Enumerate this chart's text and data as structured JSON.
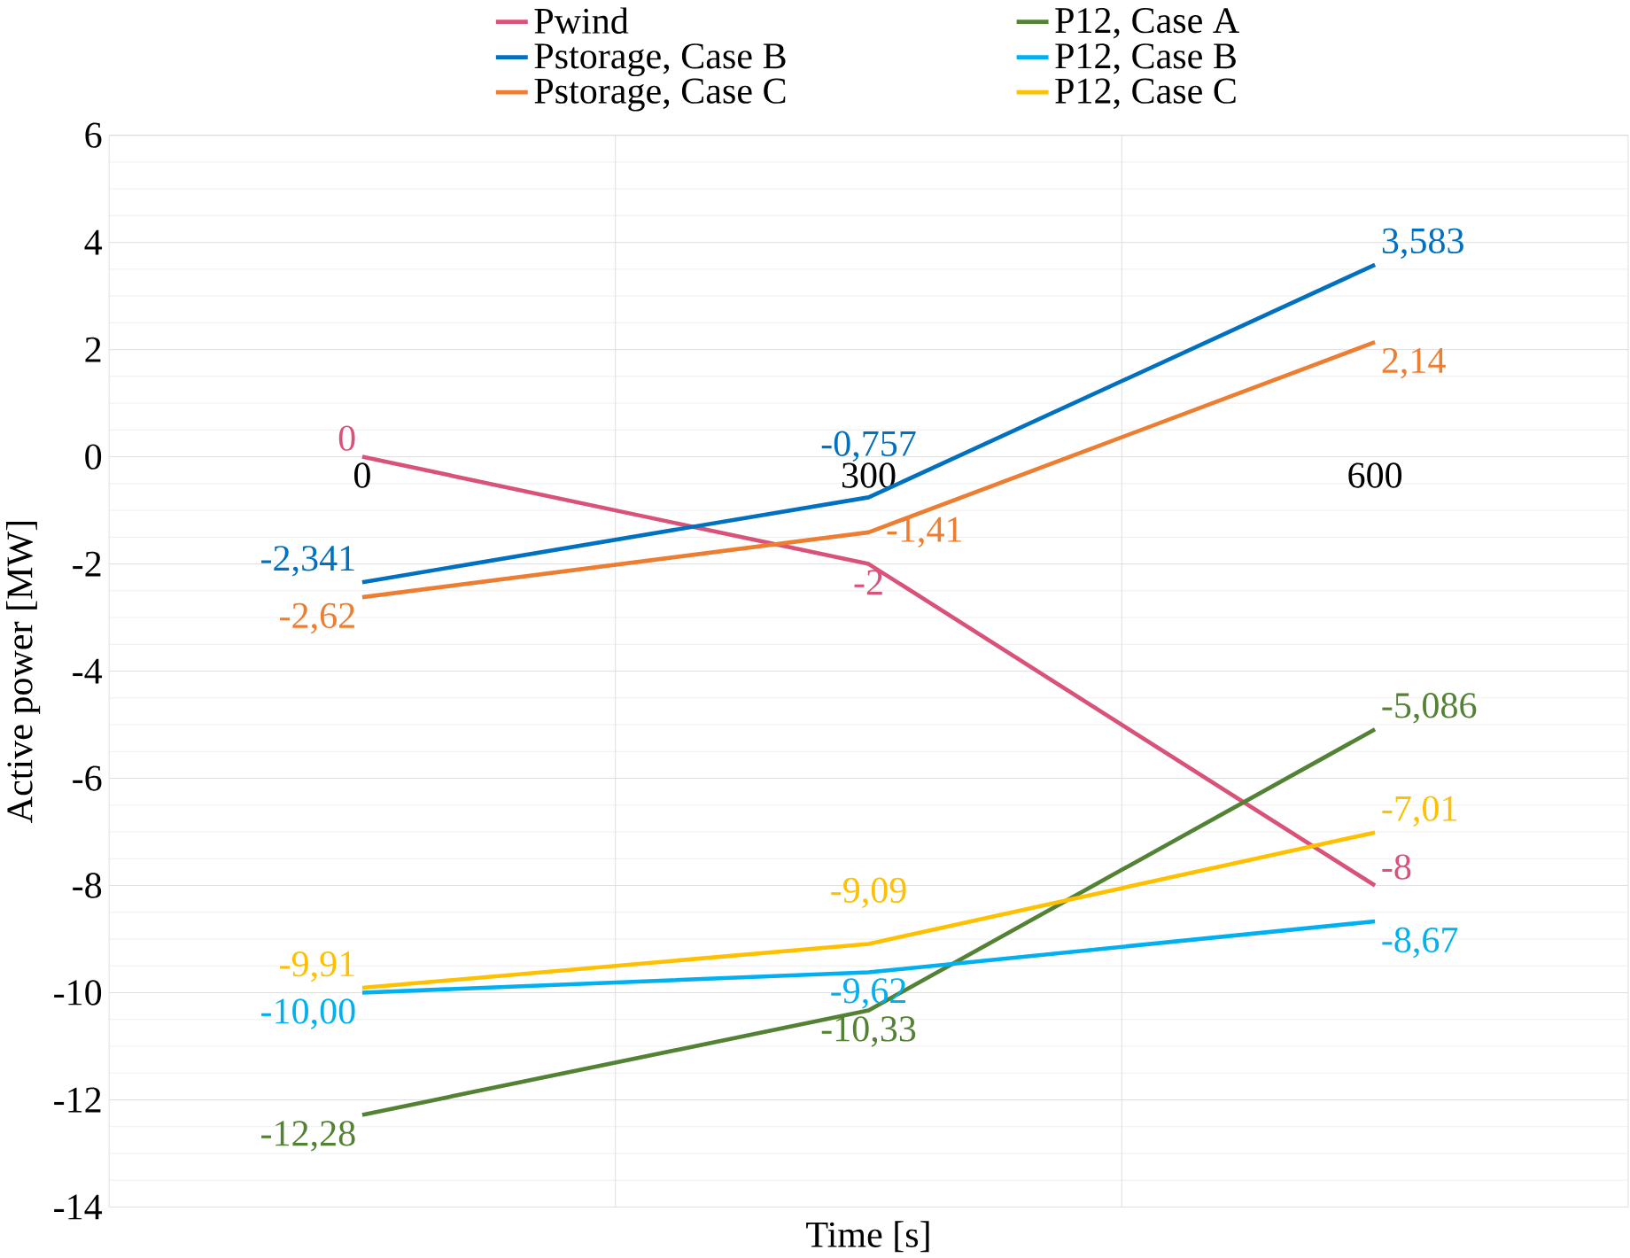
{
  "chart_data": {
    "type": "line",
    "xlabel": "Time [s]",
    "ylabel": "Active power [MW]",
    "categories": [
      "0",
      "300",
      "600"
    ],
    "ylim": [
      -14,
      6
    ],
    "yticks": [
      -14,
      -12,
      -10,
      -8,
      -6,
      -4,
      -2,
      0,
      2,
      4,
      6
    ],
    "grid": true,
    "legend": "top",
    "marker": "none",
    "line_style": "solid",
    "series": [
      {
        "name": "Pwind",
        "color": "#d9527a",
        "values": [
          0,
          -2,
          -8
        ],
        "value_labels": [
          "0",
          "-2",
          "-8"
        ]
      },
      {
        "name": "P12, Case A",
        "color": "#548235",
        "values": [
          -12.28,
          -10.33,
          -5.086
        ],
        "value_labels": [
          "-12,28",
          "-10,33",
          "-5,086"
        ]
      },
      {
        "name": "Pstorage, Case B",
        "color": "#0070c0",
        "values": [
          -2.341,
          -0.757,
          3.583
        ],
        "value_labels": [
          "-2,341",
          "-0,757",
          "3,583"
        ]
      },
      {
        "name": "P12, Case B",
        "color": "#00b0f0",
        "values": [
          -10.0,
          -9.62,
          -8.67
        ],
        "value_labels": [
          "-10,00",
          "-9,62",
          "-8,67"
        ]
      },
      {
        "name": "Pstorage, Case C",
        "color": "#ed7d31",
        "values": [
          -2.62,
          -1.41,
          2.14
        ],
        "value_labels": [
          "-2,62",
          "-1,41",
          "2,14"
        ]
      },
      {
        "name": "P12, Case C",
        "color": "#ffc000",
        "values": [
          -9.91,
          -9.09,
          -7.01
        ],
        "value_labels": [
          "-9,91",
          "-9,09",
          "-7,01"
        ]
      }
    ]
  }
}
